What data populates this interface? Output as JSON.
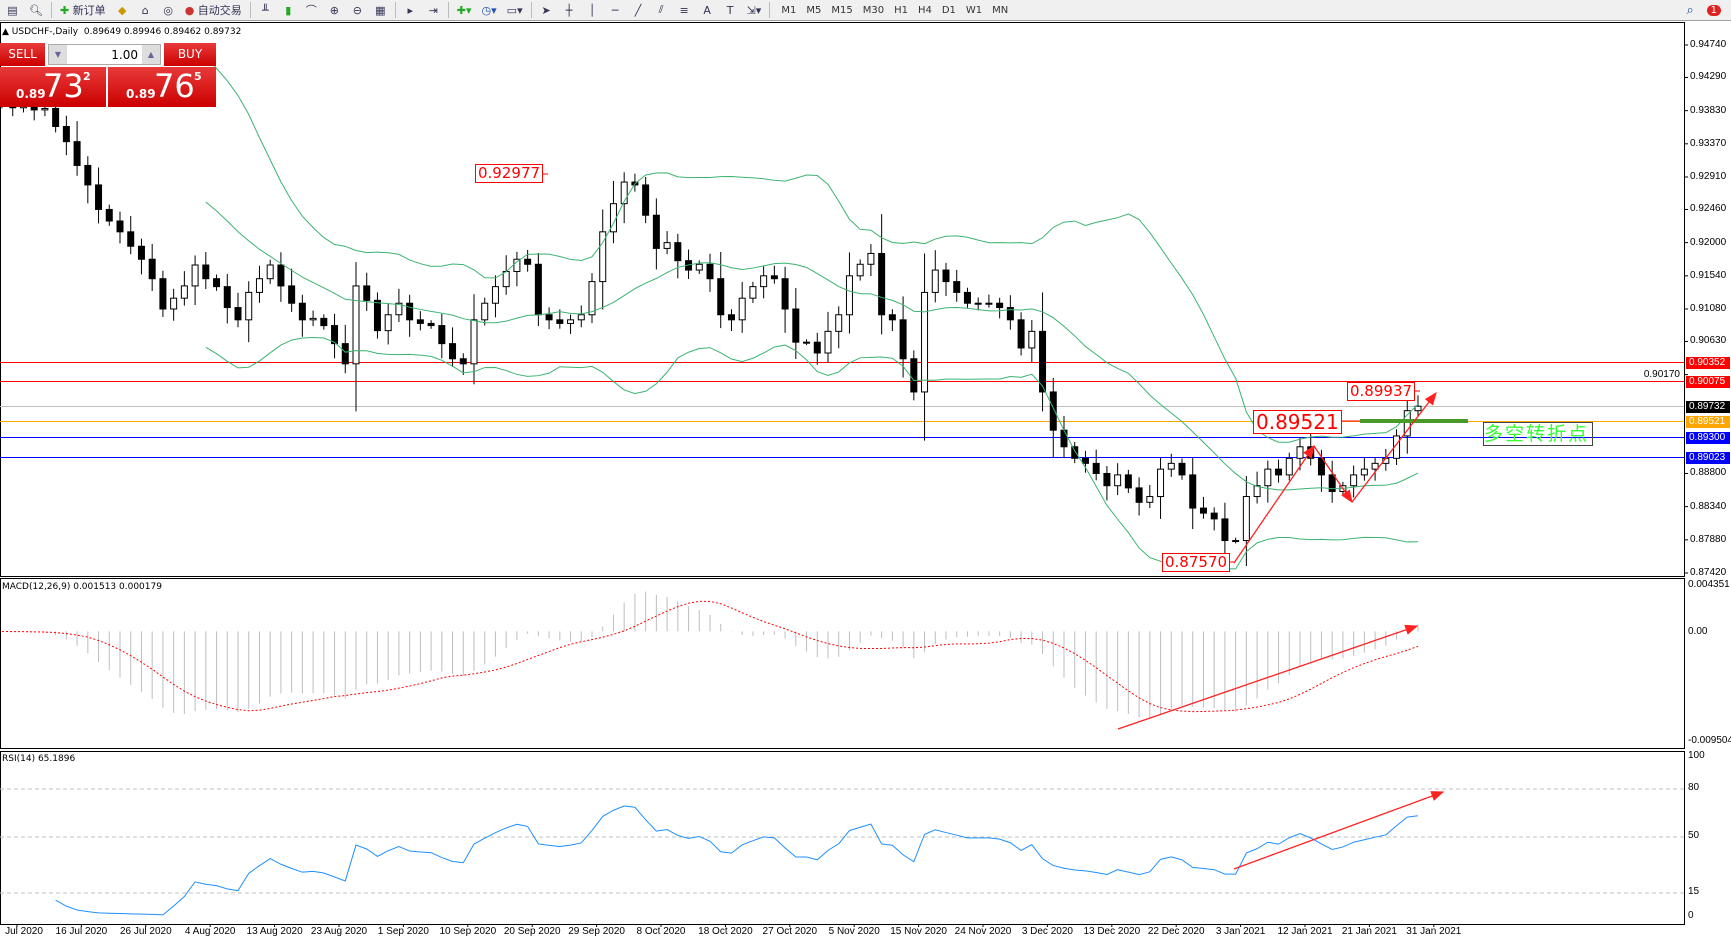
{
  "toolbar": {
    "new_order": "新订单",
    "auto_trade": "自动交易",
    "timeframes": [
      "M1",
      "M5",
      "M15",
      "M30",
      "H1",
      "H4",
      "D1",
      "W1",
      "MN"
    ],
    "notifications": "1"
  },
  "chart": {
    "title": "USDCHF-,Daily",
    "ohlc": "0.89649 0.89946 0.89462 0.89732"
  },
  "trade_panel": {
    "sell_label": "SELL",
    "buy_label": "BUY",
    "volume": "1.00",
    "sell_prefix": "0.89",
    "sell_big": "73",
    "sell_sup": "2",
    "buy_prefix": "0.89",
    "buy_big": "76",
    "buy_sup": "5"
  },
  "price_axis": {
    "ticks": [
      "0.94740",
      "0.94290",
      "0.93830",
      "0.93370",
      "0.92910",
      "0.92460",
      "0.92000",
      "0.91540",
      "0.91080",
      "0.90630",
      "0.90170",
      "0.88800",
      "0.88340",
      "0.87880",
      "0.87420"
    ],
    "range": [
      0.8742,
      0.9474
    ]
  },
  "levels": [
    {
      "price": "0.90352",
      "color": "#ff0000"
    },
    {
      "price": "0.90075",
      "color": "#ff0000"
    },
    {
      "price": "0.89732",
      "color": "#000000",
      "line": "#c0c0c0"
    },
    {
      "price": "0.89521",
      "color": "#ffa500"
    },
    {
      "price": "0.89300",
      "color": "#0000ff"
    },
    {
      "price": "0.89023",
      "color": "#0000ff"
    }
  ],
  "annotations": {
    "high1": "0.92977",
    "pivot": "0.89521",
    "high2": "0.89937",
    "low": "0.87570",
    "note": "多空转折点"
  },
  "macd": {
    "label": "MACD(12,26,9) 0.001513 0.000179",
    "max": "0.004351",
    "zero": "0.00",
    "min": "-0.009504"
  },
  "rsi": {
    "label": "RSI(14) 65.1896",
    "levels": [
      "100",
      "80",
      "50",
      "15",
      "0"
    ]
  },
  "dates": [
    "Jul 2020",
    "16 Jul 2020",
    "26 Jul 2020",
    "4 Aug 2020",
    "13 Aug 2020",
    "23 Aug 2020",
    "1 Sep 2020",
    "10 Sep 2020",
    "20 Sep 2020",
    "29 Sep 2020",
    "8 Oct 2020",
    "18 Oct 2020",
    "27 Oct 2020",
    "5 Nov 2020",
    "15 Nov 2020",
    "24 Nov 2020",
    "3 Dec 2020",
    "13 Dec 2020",
    "22 Dec 2020",
    "3 Jan 2021",
    "12 Jan 2021",
    "21 Jan 2021",
    "31 Jan 2021"
  ],
  "chart_data": {
    "type": "candlestick",
    "symbol": "USDCHF-",
    "timeframe": "Daily",
    "closes": [
      0.9391,
      0.9387,
      0.9389,
      0.9384,
      0.9386,
      0.9361,
      0.934,
      0.9307,
      0.928,
      0.9246,
      0.923,
      0.9215,
      0.9195,
      0.9177,
      0.915,
      0.9108,
      0.9123,
      0.914,
      0.9169,
      0.915,
      0.9139,
      0.911,
      0.9093,
      0.9131,
      0.915,
      0.9169,
      0.914,
      0.9116,
      0.9093,
      0.9095,
      0.9085,
      0.906,
      0.9032,
      0.914,
      0.912,
      0.9078,
      0.91,
      0.9116,
      0.9093,
      0.9088,
      0.9085,
      0.906,
      0.9039,
      0.9032,
      0.9093,
      0.9116,
      0.9139,
      0.916,
      0.9177,
      0.917,
      0.91,
      0.9093,
      0.9088,
      0.9093,
      0.91,
      0.9146,
      0.9215,
      0.9254,
      0.9284,
      0.928,
      0.9238,
      0.9192,
      0.92,
      0.9175,
      0.9162,
      0.917,
      0.915,
      0.91,
      0.9093,
      0.9123,
      0.9139,
      0.9154,
      0.915,
      0.9108,
      0.9062,
      0.9062,
      0.9047,
      0.9077,
      0.91,
      0.9154,
      0.917,
      0.9185,
      0.91,
      0.9093,
      0.9039,
      0.8993,
      0.9131,
      0.9162,
      0.9146,
      0.9131,
      0.9116,
      0.9116,
      0.9116,
      0.911,
      0.9093,
      0.9054,
      0.9077,
      0.8993,
      0.894,
      0.8917,
      0.8901,
      0.8894,
      0.888,
      0.8863,
      0.8878,
      0.886,
      0.884,
      0.8848,
      0.8886,
      0.8894,
      0.8878,
      0.8832,
      0.8825,
      0.8817,
      0.8787,
      0.8787,
      0.8848,
      0.8863,
      0.8886,
      0.8878,
      0.8901,
      0.8917,
      0.8901,
      0.8878,
      0.8855,
      0.8863,
      0.8878,
      0.8886,
      0.8894,
      0.8901,
      0.8932,
      0.8967,
      0.89732
    ],
    "indicators": [
      "Bollinger Bands",
      "MACD(12,26,9)",
      "RSI(14)"
    ],
    "colors": {
      "bands": "#3cb371",
      "macd_signal": "#ff0000",
      "rsi": "#1e90ff",
      "arrows": "#ff2020",
      "pivot_bar": "#4a9a2a"
    }
  }
}
